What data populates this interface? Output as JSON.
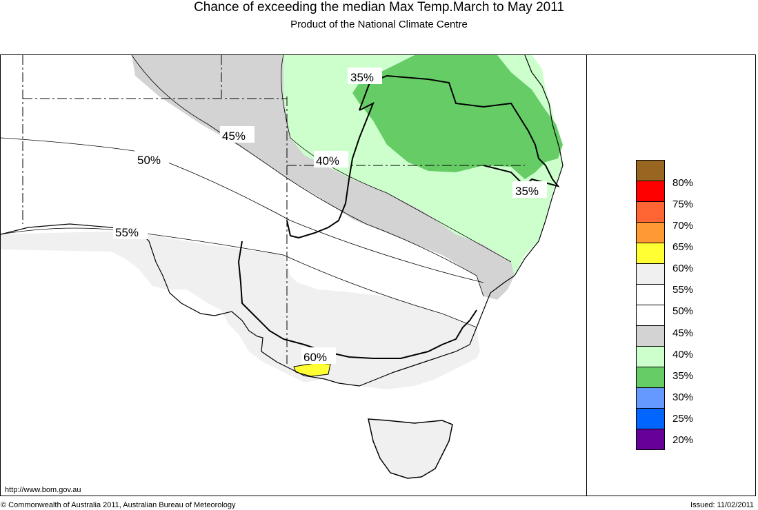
{
  "header": {
    "title": "Chance of exceeding the median Max Temp.March to May 2011",
    "subtitle": "Product of the National Climate Centre"
  },
  "map": {
    "contour_labels": [
      "35%",
      "45%",
      "40%",
      "50%",
      "35%",
      "55%",
      "60%"
    ],
    "colors": {
      "land_light_grey": "#f0f0f0",
      "white": "#ffffff",
      "mid_grey": "#d3d3d3",
      "light_green": "#ccffcc",
      "green": "#66cc66",
      "yellow": "#ffff33"
    }
  },
  "legend": {
    "items": [
      {
        "label": "",
        "color": "#996622"
      },
      {
        "label": "80%",
        "color": "#ff0000"
      },
      {
        "label": "75%",
        "color": "#ff6633"
      },
      {
        "label": "70%",
        "color": "#ff9933"
      },
      {
        "label": "65%",
        "color": "#ffff33"
      },
      {
        "label": "60%",
        "color": "#f0f0f0"
      },
      {
        "label": "55%",
        "color": "#ffffff"
      },
      {
        "label": "50%",
        "color": "#ffffff"
      },
      {
        "label": "45%",
        "color": "#d3d3d3"
      },
      {
        "label": "40%",
        "color": "#ccffcc"
      },
      {
        "label": "35%",
        "color": "#66cc66"
      },
      {
        "label": "30%",
        "color": "#6699ff"
      },
      {
        "label": "25%",
        "color": "#0066ff"
      },
      {
        "label": "20%",
        "color": "#660099"
      }
    ]
  },
  "footer": {
    "url": "http://www.bom.gov.au",
    "copyright": "© Commonwealth of Australia 2011, Australian Bureau of Meteorology",
    "issued": "Issued: 11/02/2011"
  }
}
